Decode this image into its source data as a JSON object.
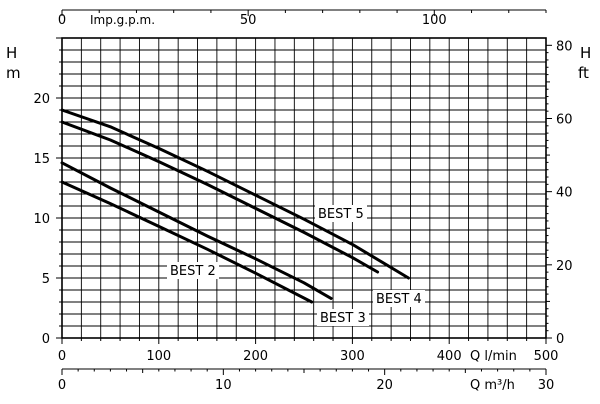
{
  "chart_data": {
    "type": "line",
    "x_unit_label": "Q  l/min",
    "bottom_unit_label": "Q  m³/h",
    "top_unit_label": "Imp.g.p.m.",
    "left_axis_label": [
      "H",
      "m"
    ],
    "right_axis_label": [
      "H",
      "ft"
    ],
    "xlim": [
      0,
      500
    ],
    "ylim": [
      0,
      25
    ],
    "x_ticks": [
      0,
      100,
      200,
      300,
      400,
      500
    ],
    "y_ticks": [
      0,
      5,
      10,
      15,
      20
    ],
    "top_axis": {
      "lim": [
        0,
        130
      ],
      "ticks": [
        0,
        50,
        100
      ]
    },
    "bottom_m3h_axis": {
      "lim": [
        0,
        30
      ],
      "ticks": [
        0,
        10,
        20,
        30
      ]
    },
    "right_ft_axis": {
      "lim": [
        0,
        82
      ],
      "ticks": [
        0,
        20,
        40,
        60,
        80
      ]
    },
    "grid": true,
    "series": [
      {
        "name": "BEST 2",
        "x": [
          0,
          50,
          100,
          150,
          200,
          258
        ],
        "y": [
          13.0,
          11.2,
          9.3,
          7.4,
          5.4,
          3.0
        ]
      },
      {
        "name": "BEST 3",
        "x": [
          0,
          50,
          100,
          150,
          200,
          250,
          278
        ],
        "y": [
          14.6,
          12.5,
          10.5,
          8.5,
          6.6,
          4.6,
          3.3
        ]
      },
      {
        "name": "BEST 4",
        "x": [
          0,
          50,
          100,
          150,
          200,
          250,
          300,
          326
        ],
        "y": [
          18.0,
          16.5,
          14.7,
          12.8,
          10.8,
          8.8,
          6.7,
          5.5
        ]
      },
      {
        "name": "BEST 5",
        "x": [
          0,
          50,
          100,
          150,
          200,
          250,
          300,
          358
        ],
        "y": [
          19.0,
          17.6,
          15.8,
          13.9,
          11.9,
          9.9,
          7.8,
          5.0
        ]
      }
    ]
  }
}
